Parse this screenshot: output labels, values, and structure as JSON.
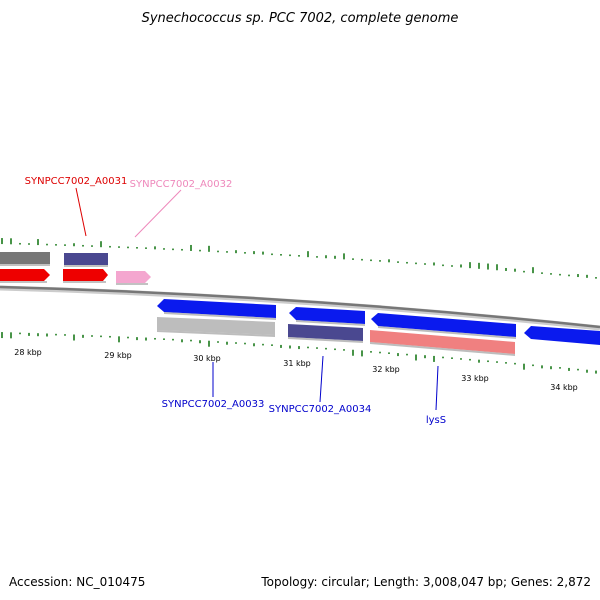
{
  "title": "Synechococcus sp. PCC 7002, complete genome",
  "footer": {
    "accession": "Accession: NC_010475",
    "summary": "Topology: circular; Length: 3,008,047 bp; Genes: 2,872"
  },
  "ticks": [
    "28 kbp",
    "29 kbp",
    "30 kbp",
    "31 kbp",
    "32 kbp",
    "33 kbp",
    "34 kbp"
  ],
  "gene_labels": [
    {
      "text": "SYNPCC7002_A0031",
      "color": "#dd0000"
    },
    {
      "text": "SYNPCC7002_A0032",
      "color": "#ee88bb"
    },
    {
      "text": "SYNPCC7002_A0033",
      "color": "#0000cc"
    },
    {
      "text": "SYNPCC7002_A0034",
      "color": "#0000cc"
    },
    {
      "text": "lysS",
      "color": "#0000cc"
    }
  ],
  "colors": {
    "backbone": "#888888",
    "gc_marks": "#1a7a1a",
    "red_gene": "#ee0000",
    "pink_gene": "#f4a6cf",
    "blue_gene": "#0a1aee",
    "navy_gene": "#4a4890",
    "grey_gene": "#bdbdbd",
    "salmon_gene": "#f08080",
    "dark_grey_gene": "#777777"
  }
}
